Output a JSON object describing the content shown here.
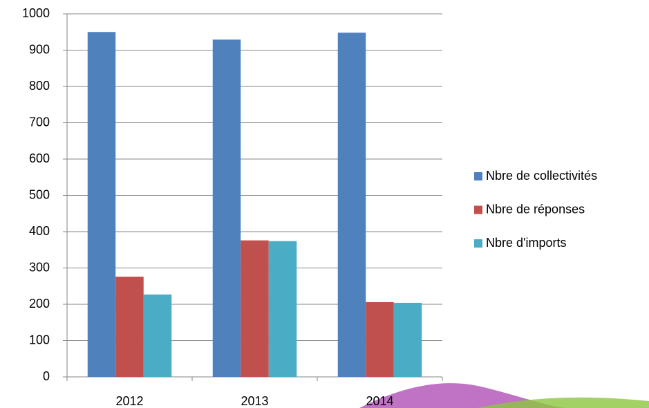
{
  "chart_data": {
    "type": "bar",
    "categories": [
      "2012",
      "2013",
      "2014"
    ],
    "series": [
      {
        "name": "Nbre de collectivités",
        "color": "#4f81bd",
        "values": [
          950,
          929,
          948
        ]
      },
      {
        "name": "Nbre de réponses",
        "color": "#c0504d",
        "values": [
          276,
          376,
          206
        ]
      },
      {
        "name": "Nbre d'imports",
        "color": "#4bacc6",
        "values": [
          227,
          374,
          204
        ]
      }
    ],
    "ylim": [
      0,
      1000
    ],
    "yticks": [
      0,
      100,
      200,
      300,
      400,
      500,
      600,
      700,
      800,
      900,
      1000
    ],
    "grid": true,
    "legend": "right"
  }
}
